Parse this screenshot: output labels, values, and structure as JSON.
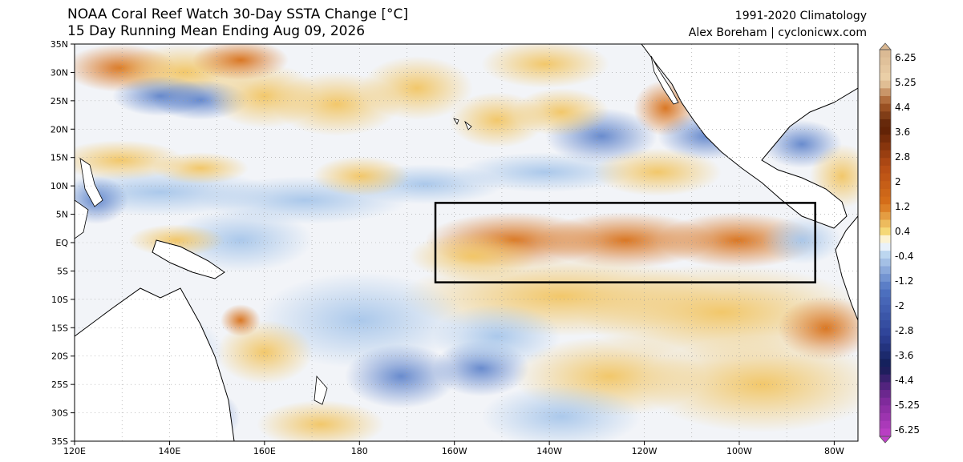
{
  "header": {
    "title": "NOAA Coral Reef Watch 30-Day SSTA Change [°C]",
    "subtitle": "15 Day Running Mean Ending Aug 09, 2026",
    "climatology": "1991-2020 Climatology",
    "credit": "Alex Boreham | cyclonicwx.com"
  },
  "map": {
    "lat_labels": [
      "35N",
      "30N",
      "25N",
      "20N",
      "15N",
      "10N",
      "5N",
      "EQ",
      "5S",
      "10S",
      "15S",
      "20S",
      "25S",
      "30S",
      "35S"
    ],
    "lon_labels": [
      "120E",
      "140E",
      "160E",
      "180",
      "160W",
      "140W",
      "120W",
      "100W",
      "80W"
    ],
    "lon_range": [
      120,
      285
    ],
    "lat_range": [
      -35,
      35
    ],
    "highlight_box": {
      "lon": [
        196,
        276
      ],
      "lat": [
        -7,
        7
      ]
    }
  },
  "colorbar": {
    "labels": [
      "6.25",
      "5.25",
      "4.4",
      "3.6",
      "2.8",
      "2",
      "1.2",
      "0.4",
      "-0.4",
      "-1.2",
      "-2",
      "-2.8",
      "-3.6",
      "-4.4",
      "-5.25",
      "-6.25"
    ],
    "colors": {
      "strong_warm": "#5a1f05",
      "warm": "#d8711a",
      "weak_warm": "#f5d878",
      "neutral": "#ffffff",
      "weak_cool": "#bcd6ef",
      "cool": "#4f73c2",
      "strong_cool": "#121c55",
      "extreme_cool": "#c040c8",
      "extreme_warm": "#d9b791"
    }
  }
}
